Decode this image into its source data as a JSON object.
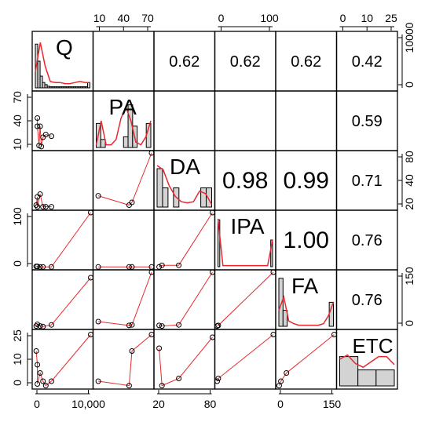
{
  "chart_data": {
    "type": "scatter",
    "variables": [
      "Q",
      "PA",
      "DA",
      "IPA",
      "FA",
      "ETC"
    ],
    "correlations": [
      {
        "row": 0,
        "col": 2,
        "text": "0.62"
      },
      {
        "row": 0,
        "col": 3,
        "text": "0.62"
      },
      {
        "row": 0,
        "col": 4,
        "text": "0.62"
      },
      {
        "row": 0,
        "col": 5,
        "text": "0.42"
      },
      {
        "row": 1,
        "col": 5,
        "text": "0.59"
      },
      {
        "row": 2,
        "col": 3,
        "text": "0.98"
      },
      {
        "row": 2,
        "col": 4,
        "text": "0.99"
      },
      {
        "row": 2,
        "col": 5,
        "text": "0.71"
      },
      {
        "row": 3,
        "col": 4,
        "text": "1.00"
      },
      {
        "row": 3,
        "col": 5,
        "text": "0.76"
      },
      {
        "row": 4,
        "col": 5,
        "text": "0.76"
      }
    ],
    "top_axes": [
      {
        "col": 1,
        "ticks": [
          "10",
          "40",
          "70"
        ]
      },
      {
        "col": 3,
        "ticks": [
          "0",
          "100"
        ]
      },
      {
        "col": 5,
        "ticks": [
          "0",
          "10",
          "25"
        ]
      }
    ],
    "right_axes": [
      {
        "row": 0,
        "ticks": [
          "0",
          "10000"
        ]
      },
      {
        "row": 2,
        "ticks": [
          "20",
          "40",
          "80"
        ]
      },
      {
        "row": 4,
        "ticks": [
          "0",
          "150"
        ]
      }
    ],
    "bottom_axes": [
      {
        "col": 0,
        "ticks": [
          "0",
          "10,000"
        ]
      },
      {
        "col": 2,
        "ticks": [
          "20",
          "80"
        ]
      },
      {
        "col": 4,
        "ticks": [
          "0",
          "150"
        ]
      }
    ],
    "left_axes": [
      {
        "row": 1,
        "ticks": [
          "70",
          "40",
          "10"
        ]
      },
      {
        "row": 3,
        "ticks": [
          "100",
          "0"
        ]
      },
      {
        "row": 5,
        "ticks": [
          "25",
          "10",
          "0"
        ]
      }
    ],
    "histograms": [
      {
        "var": "Q",
        "bars": [
          0.82,
          0.5,
          0.22,
          0.1,
          0.06,
          0.03,
          0.02,
          0.02,
          0.02,
          0.02,
          0.02,
          0.02,
          0.02,
          0.02,
          0.02,
          0.02,
          0.02,
          0.02,
          0.02,
          0.02,
          0.02,
          0.02,
          0.1
        ],
        "density": [
          0.3,
          0.85,
          0.4,
          0.12,
          0.1,
          0.1,
          0.08,
          0.08,
          0.1,
          0.12,
          0.1,
          0.1
        ]
      },
      {
        "var": "PA",
        "bars": [
          0.45,
          0.15,
          0.0,
          0.0,
          0.0,
          0.0,
          0.2,
          0.8,
          0.4,
          0.0,
          0.0,
          0.45
        ],
        "density": [
          0.05,
          0.5,
          0.05,
          0.05,
          0.15,
          0.55,
          0.75,
          0.5,
          0.1,
          0.05,
          0.2,
          0.5
        ]
      },
      {
        "var": "DA",
        "bars": [
          0.72,
          0.36,
          0.0,
          0.36,
          0.0,
          0.0,
          0.0,
          0.0,
          0.36,
          0.36
        ],
        "density": [
          0.78,
          0.7,
          0.4,
          0.2,
          0.1,
          0.08,
          0.1,
          0.3,
          0.25,
          0.05
        ]
      },
      {
        "var": "IPA",
        "bars": [
          0.88,
          0.0,
          0.0,
          0.0,
          0.0,
          0.0,
          0.0,
          0.0,
          0.0,
          0.0,
          0.0,
          0.0,
          0.0,
          0.0,
          0.0,
          0.0,
          0.0,
          0.0,
          0.0,
          0.0,
          0.0,
          0.0,
          0.0,
          0.0,
          0.0,
          0.0,
          0.0,
          0.0,
          0.0,
          0.5
        ],
        "density": [
          0.9,
          0.02,
          0.02,
          0.02,
          0.02,
          0.02,
          0.02,
          0.02,
          0.02,
          0.02,
          0.02,
          0.5
        ]
      },
      {
        "var": "FA",
        "bars": [
          0.9,
          0.3,
          0.0,
          0.0,
          0.0,
          0.0,
          0.0,
          0.0,
          0.0,
          0.0,
          0.0,
          0.0,
          0.45
        ],
        "density": [
          0.3,
          0.55,
          0.1,
          0.05,
          0.02,
          0.02,
          0.02,
          0.02,
          0.02,
          0.05,
          0.2,
          0.45
        ]
      },
      {
        "var": "ETC",
        "bars": [
          0.55,
          0.3,
          0.3
        ],
        "density": [
          0.5,
          0.58,
          0.42,
          0.35,
          0.45,
          0.55,
          0.55,
          0.4
        ]
      }
    ],
    "scatter": {
      "1,0": [
        [
          0.05,
          0.45
        ],
        [
          0.1,
          0.6
        ],
        [
          0.15,
          0.8
        ],
        [
          0.2,
          0.75
        ],
        [
          0.3,
          0.78
        ],
        [
          0.05,
          0.6
        ],
        [
          0.08,
          0.95
        ],
        [
          0.12,
          0.97
        ]
      ],
      "2,0": [
        [
          0.03,
          0.95
        ],
        [
          0.05,
          0.8
        ],
        [
          0.1,
          0.75
        ],
        [
          0.15,
          0.98
        ],
        [
          0.2,
          0.98
        ],
        [
          0.05,
          0.98
        ],
        [
          0.3,
          0.98
        ]
      ],
      "2,1": [
        [
          0.05,
          0.78
        ],
        [
          0.6,
          0.95
        ],
        [
          0.65,
          0.9
        ],
        [
          1.0,
          0.0
        ]
      ],
      "3,0": [
        [
          0.03,
          0.98
        ],
        [
          0.05,
          0.98
        ],
        [
          0.1,
          0.99
        ],
        [
          0.15,
          0.99
        ],
        [
          0.3,
          0.99
        ],
        [
          1.0,
          0.0
        ]
      ],
      "3,1": [
        [
          0.05,
          0.99
        ],
        [
          0.6,
          0.99
        ],
        [
          0.65,
          0.99
        ],
        [
          1.0,
          0.99
        ]
      ],
      "3,2": [
        [
          0.05,
          0.99
        ],
        [
          0.1,
          0.96
        ],
        [
          0.4,
          0.96
        ],
        [
          1.0,
          0.0
        ]
      ],
      "4,0": [
        [
          0.03,
          0.98
        ],
        [
          0.05,
          0.95
        ],
        [
          0.1,
          0.98
        ],
        [
          0.15,
          0.99
        ],
        [
          0.3,
          0.96
        ],
        [
          1.0,
          0.1
        ]
      ],
      "4,1": [
        [
          0.05,
          0.9
        ],
        [
          0.6,
          0.97
        ],
        [
          0.65,
          0.96
        ],
        [
          1.0,
          0.0
        ]
      ],
      "4,2": [
        [
          0.05,
          0.97
        ],
        [
          0.1,
          0.98
        ],
        [
          0.4,
          0.96
        ],
        [
          1.0,
          0.0
        ]
      ],
      "4,3": [
        [
          0.0,
          0.98
        ],
        [
          0.02,
          0.97
        ],
        [
          1.0,
          0.0
        ]
      ],
      "5,0": [
        [
          0.03,
          0.35
        ],
        [
          0.05,
          0.6
        ],
        [
          0.1,
          0.75
        ],
        [
          0.15,
          0.9
        ],
        [
          0.2,
          0.98
        ],
        [
          0.05,
          0.95
        ],
        [
          0.3,
          0.9
        ],
        [
          1.0,
          0.05
        ]
      ],
      "5,1": [
        [
          0.05,
          0.9
        ],
        [
          0.6,
          0.98
        ],
        [
          0.65,
          0.35
        ],
        [
          1.0,
          0.05
        ]
      ],
      "5,2": [
        [
          0.05,
          0.3
        ],
        [
          0.1,
          0.98
        ],
        [
          0.4,
          0.85
        ],
        [
          1.0,
          0.1
        ]
      ],
      "5,3": [
        [
          0.0,
          0.9
        ],
        [
          0.02,
          0.85
        ],
        [
          1.0,
          0.05
        ]
      ],
      "5,4": [
        [
          0.02,
          0.98
        ],
        [
          0.05,
          0.9
        ],
        [
          0.15,
          0.75
        ],
        [
          1.0,
          0.05
        ]
      ]
    },
    "colors": {
      "hist_fill": "#d3d3d3",
      "density_line": "#e8282d",
      "point": "#000000",
      "grid_line": "#000000"
    }
  }
}
